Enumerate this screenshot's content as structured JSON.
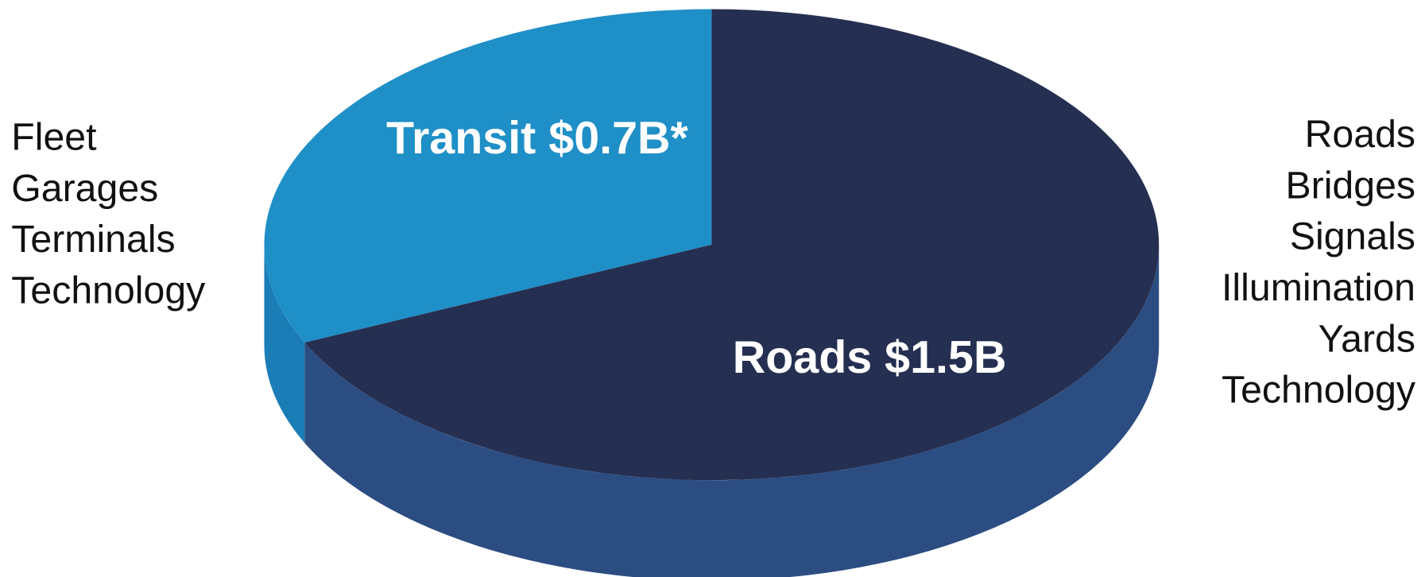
{
  "chart_data": {
    "type": "pie",
    "values": [
      0.7,
      1.5
    ],
    "value_labels": [
      "Transit $0.7B*",
      "Roads $1.5B"
    ],
    "colors": [
      "#1f8fc7",
      "#252f52"
    ],
    "side_colors": [
      "#1b7db6",
      "#2b4d82"
    ],
    "annotations": {
      "left": [
        "Fleet",
        "Garages",
        "Terminals",
        "Technology"
      ],
      "right": [
        "Roads",
        "Bridges",
        "Signals",
        "Illumination",
        "Yards",
        "Technology"
      ]
    }
  }
}
